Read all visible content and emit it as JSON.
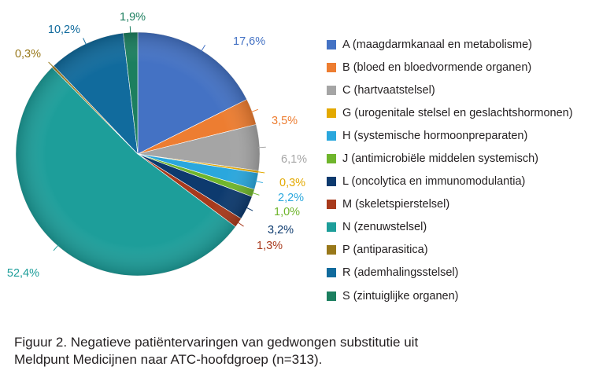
{
  "chart_data": {
    "type": "pie",
    "title": "",
    "slices": [
      {
        "key": "A",
        "label": "A (maagdarmkanaal en metabolisme)",
        "value": 17.6,
        "value_label": "17,6%",
        "color": "#4472c4"
      },
      {
        "key": "B",
        "label": "B (bloed en bloedvormende organen)",
        "value": 3.5,
        "value_label": "3,5%",
        "color": "#ed7d31"
      },
      {
        "key": "C",
        "label": "C (hartvaatstelsel)",
        "value": 6.1,
        "value_label": "6,1%",
        "color": "#a5a5a5"
      },
      {
        "key": "G",
        "label": "G (urogenitale stelsel en geslachtshormonen)",
        "value": 0.3,
        "value_label": "0,3%",
        "color": "#e3a900"
      },
      {
        "key": "H",
        "label": "H (systemische hormoonpreparaten)",
        "value": 2.2,
        "value_label": "2,2%",
        "color": "#2aa7dd"
      },
      {
        "key": "J",
        "label": "J (antimicrobiële middelen systemisch)",
        "value": 1.0,
        "value_label": "1,0%",
        "color": "#6fb52c"
      },
      {
        "key": "L",
        "label": "L (oncolytica en immunomodulantia)",
        "value": 3.2,
        "value_label": "3,2%",
        "color": "#0d3a6e"
      },
      {
        "key": "M",
        "label": "M (skeletspierstelsel)",
        "value": 1.3,
        "value_label": "1,3%",
        "color": "#a83a1c"
      },
      {
        "key": "N",
        "label": "N (zenuwstelsel)",
        "value": 52.4,
        "value_label": "52,4%",
        "color": "#1d9e9a"
      },
      {
        "key": "P",
        "label": "P (antiparasitica)",
        "value": 0.3,
        "value_label": "0,3%",
        "color": "#98781a"
      },
      {
        "key": "R",
        "label": "R (ademhalingsstelsel)",
        "value": 10.2,
        "value_label": "10,2%",
        "color": "#116b9d"
      },
      {
        "key": "S",
        "label": "S (zintuiglijke organen)",
        "value": 1.9,
        "value_label": "1,9%",
        "color": "#1c7f5f"
      }
    ],
    "legend_position": "right"
  },
  "caption": {
    "line1": "Figuur 2. Negatieve patiëntervaringen van gedwongen substitutie uit",
    "line2": "Meldpunt Medicijnen naar ATC-hoofdgroep (n=313)."
  }
}
